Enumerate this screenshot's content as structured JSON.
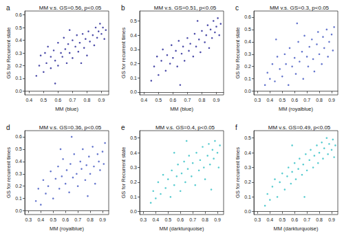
{
  "chart_data": [
    {
      "type": "scatter",
      "annotation": "a",
      "title": "MM v.s. GS=0.56, p<0.05",
      "x_label": "MM (blue)",
      "y_label": "GS for Recurrent state",
      "color": "#2e2e9a",
      "xlim": [
        0.37,
        0.95
      ],
      "ylim": [
        -0.03,
        0.63
      ],
      "xticks": [
        0.4,
        0.5,
        0.6,
        0.7,
        0.8,
        0.9
      ],
      "yticks": [
        {
          "value": 0,
          "label": "0.0"
        },
        0.1,
        0.2,
        0.3,
        0.4,
        0.5,
        0.6
      ],
      "x": [
        0.45,
        0.47,
        0.48,
        0.5,
        0.51,
        0.52,
        0.53,
        0.55,
        0.55,
        0.57,
        0.58,
        0.6,
        0.6,
        0.62,
        0.63,
        0.64,
        0.65,
        0.66,
        0.67,
        0.68,
        0.7,
        0.7,
        0.72,
        0.73,
        0.74,
        0.75,
        0.77,
        0.78,
        0.79,
        0.8,
        0.81,
        0.82,
        0.84,
        0.85,
        0.86,
        0.87,
        0.88,
        0.89,
        0.9,
        0.91,
        0.92,
        0.93,
        0.58,
        0.68,
        0.76
      ],
      "values": [
        0.12,
        0.2,
        0.28,
        0.15,
        0.3,
        0.22,
        0.35,
        0.18,
        0.27,
        0.32,
        0.24,
        0.38,
        0.2,
        0.3,
        0.27,
        0.42,
        0.33,
        0.22,
        0.37,
        0.3,
        0.4,
        0.26,
        0.35,
        0.44,
        0.31,
        0.38,
        0.45,
        0.34,
        0.41,
        0.28,
        0.47,
        0.39,
        0.44,
        0.36,
        0.5,
        0.42,
        0.47,
        0.53,
        0.45,
        0.5,
        0.41,
        0.48,
        0.06,
        0.48,
        0.22
      ]
    },
    {
      "type": "scatter",
      "annotation": "b",
      "title": "MM v.s. GS=0.51, p<0.05",
      "x_label": "MM (blue)",
      "y_label": "GS for recurrent times",
      "color": "#2e2e9a",
      "xlim": [
        0.37,
        0.95
      ],
      "ylim": [
        -0.02,
        0.57
      ],
      "xticks": [
        0.4,
        0.5,
        0.6,
        0.7,
        0.8,
        0.9
      ],
      "yticks": [
        {
          "value": 0,
          "label": "0.0"
        },
        0.1,
        0.2,
        0.3,
        0.4,
        0.5
      ],
      "x": [
        0.45,
        0.47,
        0.49,
        0.5,
        0.52,
        0.53,
        0.55,
        0.56,
        0.58,
        0.59,
        0.6,
        0.62,
        0.63,
        0.64,
        0.66,
        0.67,
        0.68,
        0.7,
        0.71,
        0.72,
        0.74,
        0.75,
        0.76,
        0.78,
        0.79,
        0.8,
        0.82,
        0.83,
        0.84,
        0.85,
        0.86,
        0.87,
        0.88,
        0.89,
        0.9,
        0.91,
        0.92,
        0.93,
        0.65,
        0.77
      ],
      "values": [
        0.08,
        0.18,
        0.25,
        0.12,
        0.22,
        0.3,
        0.15,
        0.26,
        0.2,
        0.33,
        0.24,
        0.29,
        0.18,
        0.36,
        0.27,
        0.32,
        0.22,
        0.38,
        0.29,
        0.34,
        0.25,
        0.41,
        0.32,
        0.37,
        0.28,
        0.43,
        0.35,
        0.4,
        0.47,
        0.31,
        0.44,
        0.38,
        0.5,
        0.42,
        0.46,
        0.52,
        0.4,
        0.48,
        0.05,
        0.5
      ]
    },
    {
      "type": "scatter",
      "annotation": "c",
      "title": "MM v.s. GS=0.3, p<0.05",
      "x_label": "MM (royalblue)",
      "y_label": "GS for Recurrent state",
      "color": "#4a5ec4",
      "xlim": [
        0.27,
        0.95
      ],
      "ylim": [
        -0.03,
        0.65
      ],
      "xticks": [
        0.3,
        0.4,
        0.5,
        0.6,
        0.7,
        0.8,
        0.9
      ],
      "yticks": [
        {
          "value": 0,
          "label": "0.0"
        },
        0.1,
        0.2,
        0.3,
        0.4,
        0.5,
        0.6
      ],
      "x": [
        0.36,
        0.38,
        0.4,
        0.42,
        0.44,
        0.46,
        0.48,
        0.5,
        0.52,
        0.53,
        0.55,
        0.56,
        0.58,
        0.6,
        0.61,
        0.63,
        0.64,
        0.66,
        0.67,
        0.68,
        0.7,
        0.71,
        0.72,
        0.74,
        0.75,
        0.76,
        0.78,
        0.79,
        0.8,
        0.82,
        0.83,
        0.84,
        0.86,
        0.87,
        0.88,
        0.9,
        0.91,
        0.92,
        0.62,
        0.45
      ],
      "values": [
        0.05,
        0.15,
        0.1,
        0.22,
        0.08,
        0.28,
        0.18,
        0.12,
        0.3,
        0.22,
        0.05,
        0.35,
        0.2,
        0.27,
        0.14,
        0.4,
        0.24,
        0.32,
        0.1,
        0.45,
        0.28,
        0.2,
        0.36,
        0.42,
        0.26,
        0.16,
        0.38,
        0.48,
        0.3,
        0.22,
        0.44,
        0.35,
        0.5,
        0.28,
        0.4,
        0.46,
        0.33,
        0.52,
        0.55,
        0.42
      ]
    },
    {
      "type": "scatter",
      "annotation": "d",
      "title": "MM v.s. GS=0.36, p<0.05",
      "x_label": "MM (royalblue)",
      "y_label": "GS for recurrent times",
      "color": "#4a5ec4",
      "xlim": [
        0.27,
        0.95
      ],
      "ylim": [
        -0.03,
        0.65
      ],
      "xticks": [
        0.3,
        0.4,
        0.5,
        0.6,
        0.7,
        0.8,
        0.9
      ],
      "yticks": [
        {
          "value": 0,
          "label": "0.0"
        },
        0.1,
        0.2,
        0.3,
        0.4,
        0.5,
        0.6
      ],
      "x": [
        0.36,
        0.38,
        0.4,
        0.42,
        0.44,
        0.46,
        0.48,
        0.5,
        0.52,
        0.54,
        0.55,
        0.57,
        0.58,
        0.6,
        0.61,
        0.63,
        0.64,
        0.66,
        0.67,
        0.69,
        0.7,
        0.72,
        0.73,
        0.74,
        0.76,
        0.77,
        0.79,
        0.8,
        0.82,
        0.83,
        0.84,
        0.86,
        0.87,
        0.88,
        0.9,
        0.91,
        0.92,
        0.65,
        0.56,
        0.78
      ],
      "values": [
        0.08,
        0.18,
        0.05,
        0.25,
        0.14,
        0.2,
        0.32,
        0.1,
        0.26,
        0.36,
        0.18,
        0.28,
        0.42,
        0.22,
        0.33,
        0.15,
        0.38,
        0.27,
        0.46,
        0.3,
        0.2,
        0.4,
        0.34,
        0.5,
        0.25,
        0.37,
        0.44,
        0.3,
        0.52,
        0.36,
        0.22,
        0.46,
        0.4,
        0.33,
        0.48,
        0.38,
        0.55,
        0.6,
        0.5,
        0.12
      ]
    },
    {
      "type": "scatter",
      "annotation": "e",
      "title": "MM v.s. GS=0.4, p<0.05",
      "x_label": "MM (darkturquoise)",
      "y_label": "GS for Recurrent state",
      "color": "#3cc3c8",
      "xlim": [
        0.27,
        0.95
      ],
      "ylim": [
        -0.02,
        0.55
      ],
      "xticks": [
        0.3,
        0.4,
        0.5,
        0.6,
        0.7,
        0.8,
        0.9
      ],
      "yticks": [
        {
          "value": 0,
          "label": "0.0"
        },
        0.1,
        0.2,
        0.3,
        0.4,
        0.5
      ],
      "x": [
        0.36,
        0.38,
        0.4,
        0.42,
        0.44,
        0.46,
        0.48,
        0.5,
        0.52,
        0.53,
        0.55,
        0.57,
        0.58,
        0.6,
        0.61,
        0.63,
        0.64,
        0.66,
        0.67,
        0.69,
        0.7,
        0.72,
        0.73,
        0.75,
        0.76,
        0.78,
        0.79,
        0.8,
        0.82,
        0.83,
        0.84,
        0.86,
        0.87,
        0.88,
        0.9,
        0.91,
        0.92,
        0.65,
        0.55,
        0.85
      ],
      "values": [
        0.06,
        0.14,
        0.09,
        0.2,
        0.12,
        0.25,
        0.16,
        0.22,
        0.1,
        0.28,
        0.18,
        0.24,
        0.32,
        0.14,
        0.26,
        0.34,
        0.2,
        0.29,
        0.38,
        0.24,
        0.33,
        0.18,
        0.4,
        0.28,
        0.35,
        0.44,
        0.3,
        0.22,
        0.38,
        0.46,
        0.32,
        0.42,
        0.36,
        0.48,
        0.4,
        0.3,
        0.45,
        0.48,
        0.4,
        0.15
      ]
    },
    {
      "type": "scatter",
      "annotation": "f",
      "title": "MM v.s. GS=0.49, p<0.05",
      "x_label": "MM (darkturquoise)",
      "y_label": "GS for recurrent times",
      "color": "#3cc3c8",
      "xlim": [
        0.27,
        0.95
      ],
      "ylim": [
        -0.02,
        0.55
      ],
      "xticks": [
        0.3,
        0.4,
        0.5,
        0.6,
        0.7,
        0.8,
        0.9
      ],
      "yticks": [
        {
          "value": 0,
          "label": "0.0"
        },
        0.1,
        0.2,
        0.3,
        0.4,
        0.5
      ],
      "x": [
        0.36,
        0.38,
        0.4,
        0.42,
        0.44,
        0.46,
        0.48,
        0.5,
        0.52,
        0.54,
        0.55,
        0.57,
        0.58,
        0.6,
        0.61,
        0.63,
        0.64,
        0.66,
        0.67,
        0.69,
        0.7,
        0.72,
        0.73,
        0.75,
        0.76,
        0.78,
        0.79,
        0.8,
        0.82,
        0.83,
        0.84,
        0.86,
        0.87,
        0.88,
        0.9,
        0.91,
        0.92,
        0.93,
        0.68,
        0.58
      ],
      "values": [
        0.04,
        0.12,
        0.08,
        0.17,
        0.22,
        0.1,
        0.2,
        0.26,
        0.15,
        0.24,
        0.3,
        0.19,
        0.27,
        0.33,
        0.22,
        0.29,
        0.36,
        0.25,
        0.32,
        0.39,
        0.28,
        0.35,
        0.42,
        0.3,
        0.38,
        0.45,
        0.33,
        0.4,
        0.47,
        0.36,
        0.43,
        0.5,
        0.39,
        0.46,
        0.42,
        0.49,
        0.37,
        0.45,
        0.1,
        0.45
      ]
    }
  ]
}
